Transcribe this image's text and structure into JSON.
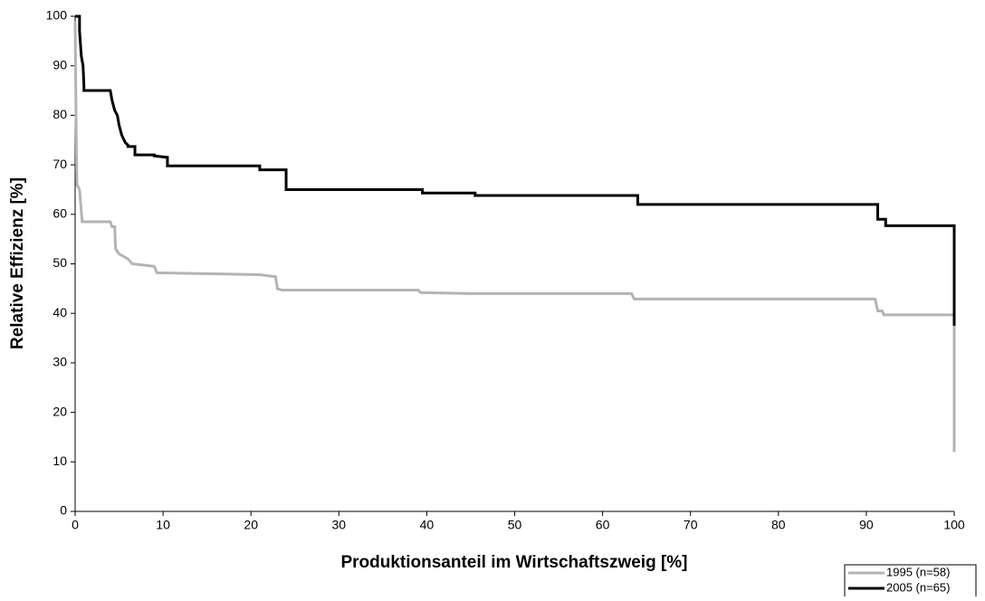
{
  "chart_data": {
    "type": "line",
    "xlabel": "Produktionsanteil im Wirtschaftszweig [%]",
    "ylabel": "Relative Effizienz [%]",
    "xlim": [
      0,
      100
    ],
    "xticks": [
      0,
      10,
      20,
      30,
      40,
      50,
      60,
      70,
      80,
      90,
      100
    ],
    "ylim": [
      0,
      100
    ],
    "yticks": [
      0,
      10,
      20,
      30,
      40,
      50,
      60,
      70,
      80,
      90,
      100
    ],
    "grid": false,
    "legend": "lower right",
    "series": [
      {
        "name": "1995 (n=58)",
        "color": "#b4b4b4",
        "x": [
          0,
          0.1,
          0.2,
          0.5,
          0.8,
          4,
          4.2,
          4.5,
          4.6,
          5,
          6,
          6.5,
          9,
          9.3,
          21,
          22.8,
          23,
          23.5,
          39,
          39.3,
          45,
          63.3,
          63.6,
          91,
          91.3,
          91.8,
          92,
          100,
          100
        ],
        "values": [
          99,
          80,
          66,
          65,
          58.5,
          58.5,
          57.5,
          57.5,
          53,
          52,
          51,
          50,
          49.5,
          48.2,
          47.8,
          47.4,
          45,
          44.7,
          44.7,
          44.2,
          44,
          44,
          42.9,
          42.9,
          40.5,
          40.5,
          39.7,
          39.7,
          12
        ]
      },
      {
        "name": "2005 (n=65)",
        "color": "#000000",
        "x": [
          0,
          0.5,
          0.5,
          0.7,
          0.9,
          1,
          1,
          4,
          4.2,
          4.5,
          4.8,
          5,
          5.3,
          5.7,
          6,
          6,
          6.8,
          6.8,
          9,
          9,
          10.5,
          10.5,
          21,
          21,
          24,
          24,
          39.5,
          39.5,
          45.5,
          45.5,
          64,
          64,
          91.3,
          91.3,
          92.2,
          92.2,
          100,
          100
        ],
        "values": [
          100,
          100,
          97,
          92,
          90,
          86,
          85,
          85,
          83,
          81,
          80,
          78,
          76,
          74.5,
          74,
          73.7,
          73.7,
          72,
          72,
          71.8,
          71.5,
          69.8,
          69.8,
          69,
          69,
          65,
          65,
          64.3,
          64.3,
          63.8,
          63.8,
          62,
          62,
          59,
          59,
          57.7,
          57.7,
          37.5
        ]
      }
    ]
  }
}
